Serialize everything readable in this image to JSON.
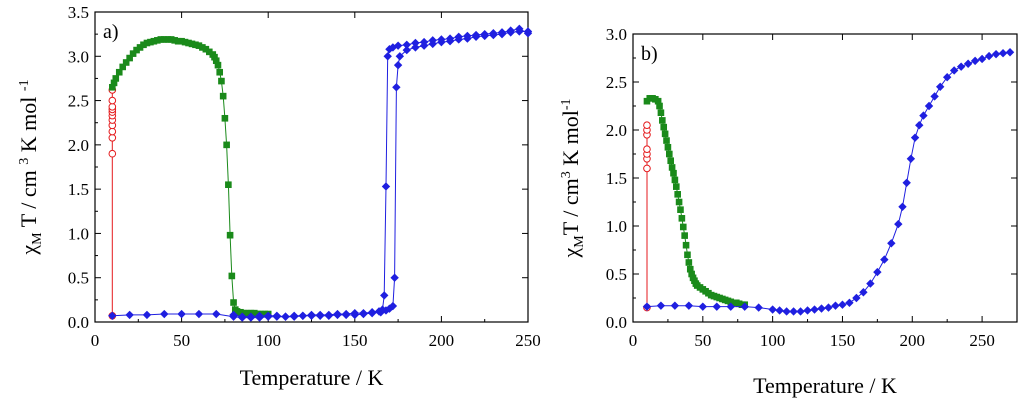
{
  "chart_data": [
    {
      "type": "scatter",
      "panel_label": "a)",
      "xlabel": "Temperature / K",
      "ylabel_parts": [
        "χ",
        "M",
        " T / cm ",
        "3",
        " K mol ",
        "-1"
      ],
      "xlim": [
        0,
        250
      ],
      "ylim": [
        0,
        3.5
      ],
      "xticks": [
        0,
        50,
        100,
        150,
        200,
        250
      ],
      "xtick_labels": [
        "0",
        "50",
        "100",
        "150",
        "200",
        "250"
      ],
      "yticks": [
        0,
        0.5,
        1.0,
        1.5,
        2.0,
        2.5,
        3.0,
        3.5
      ],
      "ytick_labels": [
        "0.0",
        "0.5",
        "1.0",
        "1.5",
        "2.0",
        "2.5",
        "3.0",
        "3.5"
      ],
      "grid": false,
      "series": [
        {
          "name": "red open circles",
          "color": "#e41a1c",
          "marker": "circle-open",
          "points": [
            [
              10,
              0.07
            ],
            [
              10,
              1.9
            ],
            [
              10,
              2.08
            ],
            [
              10,
              2.15
            ],
            [
              10,
              2.22
            ],
            [
              10,
              2.28
            ],
            [
              10,
              2.33
            ],
            [
              10,
              2.37
            ],
            [
              10,
              2.4
            ],
            [
              10,
              2.43
            ],
            [
              10,
              2.5
            ],
            [
              10,
              2.62
            ]
          ]
        },
        {
          "name": "green filled squares",
          "color": "#1a8a1a",
          "marker": "square",
          "points": [
            [
              10,
              2.65
            ],
            [
              11,
              2.7
            ],
            [
              12,
              2.75
            ],
            [
              14,
              2.82
            ],
            [
              16,
              2.88
            ],
            [
              18,
              2.93
            ],
            [
              20,
              2.98
            ],
            [
              22,
              3.03
            ],
            [
              24,
              3.07
            ],
            [
              26,
              3.1
            ],
            [
              28,
              3.13
            ],
            [
              30,
              3.15
            ],
            [
              32,
              3.16
            ],
            [
              34,
              3.17
            ],
            [
              36,
              3.18
            ],
            [
              38,
              3.19
            ],
            [
              40,
              3.19
            ],
            [
              42,
              3.19
            ],
            [
              44,
              3.19
            ],
            [
              46,
              3.18
            ],
            [
              48,
              3.17
            ],
            [
              50,
              3.17
            ],
            [
              52,
              3.16
            ],
            [
              54,
              3.15
            ],
            [
              56,
              3.14
            ],
            [
              58,
              3.13
            ],
            [
              60,
              3.12
            ],
            [
              62,
              3.1
            ],
            [
              64,
              3.08
            ],
            [
              66,
              3.05
            ],
            [
              68,
              3.02
            ],
            [
              69,
              2.99
            ],
            [
              70,
              2.95
            ],
            [
              71,
              2.9
            ],
            [
              72,
              2.82
            ],
            [
              73,
              2.72
            ],
            [
              74,
              2.55
            ],
            [
              75,
              2.3
            ],
            [
              76,
              2.0
            ],
            [
              77,
              1.55
            ],
            [
              78,
              0.98
            ],
            [
              79,
              0.52
            ],
            [
              80,
              0.22
            ],
            [
              81,
              0.14
            ],
            [
              82,
              0.12
            ],
            [
              84,
              0.11
            ],
            [
              86,
              0.1
            ],
            [
              88,
              0.1
            ],
            [
              90,
              0.1
            ],
            [
              92,
              0.1
            ],
            [
              94,
              0.09
            ],
            [
              96,
              0.09
            ],
            [
              98,
              0.09
            ],
            [
              100,
              0.09
            ]
          ]
        },
        {
          "name": "blue diamonds (cooling)",
          "color": "#1f1fe0",
          "marker": "diamond",
          "points": [
            [
              10,
              0.07
            ],
            [
              20,
              0.08
            ],
            [
              30,
              0.08
            ],
            [
              40,
              0.09
            ],
            [
              50,
              0.09
            ],
            [
              60,
              0.09
            ],
            [
              70,
              0.09
            ],
            [
              80,
              0.06
            ],
            [
              85,
              0.05
            ],
            [
              90,
              0.05
            ],
            [
              95,
              0.05
            ],
            [
              100,
              0.06
            ],
            [
              105,
              0.06
            ],
            [
              110,
              0.06
            ],
            [
              115,
              0.06
            ],
            [
              120,
              0.07
            ],
            [
              125,
              0.07
            ],
            [
              130,
              0.07
            ],
            [
              135,
              0.07
            ],
            [
              140,
              0.08
            ],
            [
              145,
              0.08
            ],
            [
              150,
              0.08
            ],
            [
              155,
              0.09
            ],
            [
              160,
              0.1
            ],
            [
              165,
              0.11
            ],
            [
              168,
              0.13
            ],
            [
              170,
              0.15
            ],
            [
              172,
              0.18
            ],
            [
              173,
              0.5
            ],
            [
              174,
              2.65
            ],
            [
              175,
              2.9
            ],
            [
              176,
              3.0
            ],
            [
              180,
              3.07
            ],
            [
              185,
              3.1
            ],
            [
              190,
              3.12
            ],
            [
              195,
              3.14
            ],
            [
              200,
              3.16
            ],
            [
              205,
              3.17
            ],
            [
              210,
              3.19
            ],
            [
              215,
              3.2
            ],
            [
              220,
              3.22
            ],
            [
              225,
              3.23
            ],
            [
              230,
              3.24
            ],
            [
              235,
              3.25
            ],
            [
              240,
              3.27
            ],
            [
              245,
              3.28
            ],
            [
              250,
              3.28
            ]
          ]
        },
        {
          "name": "blue diamonds (warming)",
          "color": "#1f1fe0",
          "marker": "diamond",
          "points": [
            [
              80,
              0.08
            ],
            [
              85,
              0.06
            ],
            [
              90,
              0.06
            ],
            [
              95,
              0.07
            ],
            [
              100,
              0.07
            ],
            [
              105,
              0.07
            ],
            [
              110,
              0.06
            ],
            [
              115,
              0.07
            ],
            [
              120,
              0.07
            ],
            [
              125,
              0.08
            ],
            [
              130,
              0.08
            ],
            [
              135,
              0.08
            ],
            [
              140,
              0.09
            ],
            [
              145,
              0.09
            ],
            [
              150,
              0.1
            ],
            [
              155,
              0.1
            ],
            [
              160,
              0.11
            ],
            [
              164,
              0.12
            ],
            [
              166,
              0.14
            ],
            [
              167,
              0.3
            ],
            [
              168,
              1.53
            ],
            [
              169,
              3.0
            ],
            [
              170,
              3.08
            ],
            [
              172,
              3.1
            ],
            [
              175,
              3.12
            ],
            [
              180,
              3.13
            ],
            [
              185,
              3.15
            ],
            [
              190,
              3.16
            ],
            [
              195,
              3.18
            ],
            [
              200,
              3.19
            ],
            [
              205,
              3.2
            ],
            [
              210,
              3.22
            ],
            [
              215,
              3.23
            ],
            [
              220,
              3.24
            ],
            [
              225,
              3.25
            ],
            [
              230,
              3.26
            ],
            [
              235,
              3.27
            ],
            [
              240,
              3.29
            ],
            [
              245,
              3.31
            ],
            [
              250,
              3.26
            ]
          ]
        }
      ]
    },
    {
      "type": "scatter",
      "panel_label": "b)",
      "xlabel": "Temperature / K",
      "ylabel_parts": [
        "χ",
        "M",
        "T / cm",
        "3",
        " K mol",
        "-1"
      ],
      "xlim": [
        0,
        275
      ],
      "ylim": [
        0,
        3.0
      ],
      "xticks": [
        0,
        50,
        100,
        150,
        200,
        250
      ],
      "xtick_labels": [
        "0",
        "50",
        "100",
        "150",
        "200",
        "250"
      ],
      "yticks": [
        0,
        0.5,
        1.0,
        1.5,
        2.0,
        2.5,
        3.0
      ],
      "ytick_labels": [
        "0.0",
        "0.5",
        "1.0",
        "1.5",
        "2.0",
        "2.5",
        "3.0"
      ],
      "grid": false,
      "series": [
        {
          "name": "red open circles",
          "color": "#e41a1c",
          "marker": "circle-open",
          "points": [
            [
              10,
              0.15
            ],
            [
              10,
              1.6
            ],
            [
              10,
              1.7
            ],
            [
              10,
              1.75
            ],
            [
              10,
              1.8
            ],
            [
              10,
              1.95
            ],
            [
              10,
              2.0
            ],
            [
              10,
              2.05
            ]
          ]
        },
        {
          "name": "green filled squares",
          "color": "#1a8a1a",
          "marker": "square",
          "points": [
            [
              10,
              2.3
            ],
            [
              12,
              2.33
            ],
            [
              14,
              2.33
            ],
            [
              16,
              2.32
            ],
            [
              18,
              2.3
            ],
            [
              19,
              2.25
            ],
            [
              20,
              2.18
            ],
            [
              21,
              2.1
            ],
            [
              22,
              2.03
            ],
            [
              23,
              1.96
            ],
            [
              24,
              1.89
            ],
            [
              25,
              1.82
            ],
            [
              26,
              1.75
            ],
            [
              27,
              1.68
            ],
            [
              28,
              1.61
            ],
            [
              29,
              1.55
            ],
            [
              30,
              1.48
            ],
            [
              31,
              1.41
            ],
            [
              32,
              1.33
            ],
            [
              33,
              1.25
            ],
            [
              34,
              1.17
            ],
            [
              35,
              1.08
            ],
            [
              36,
              0.99
            ],
            [
              37,
              0.9
            ],
            [
              38,
              0.8
            ],
            [
              39,
              0.7
            ],
            [
              40,
              0.62
            ],
            [
              41,
              0.55
            ],
            [
              42,
              0.5
            ],
            [
              43,
              0.46
            ],
            [
              44,
              0.43
            ],
            [
              45,
              0.4
            ],
            [
              46,
              0.38
            ],
            [
              48,
              0.36
            ],
            [
              50,
              0.34
            ],
            [
              52,
              0.32
            ],
            [
              54,
              0.3
            ],
            [
              56,
              0.28
            ],
            [
              58,
              0.27
            ],
            [
              60,
              0.26
            ],
            [
              62,
              0.25
            ],
            [
              64,
              0.24
            ],
            [
              66,
              0.23
            ],
            [
              68,
              0.22
            ],
            [
              70,
              0.21
            ],
            [
              72,
              0.2
            ],
            [
              74,
              0.2
            ],
            [
              76,
              0.19
            ],
            [
              78,
              0.18
            ],
            [
              80,
              0.18
            ]
          ]
        },
        {
          "name": "blue diamonds",
          "color": "#1f1fe0",
          "marker": "diamond",
          "points": [
            [
              10,
              0.16
            ],
            [
              20,
              0.17
            ],
            [
              30,
              0.17
            ],
            [
              40,
              0.17
            ],
            [
              50,
              0.16
            ],
            [
              60,
              0.16
            ],
            [
              70,
              0.16
            ],
            [
              80,
              0.16
            ],
            [
              90,
              0.15
            ],
            [
              100,
              0.13
            ],
            [
              105,
              0.12
            ],
            [
              110,
              0.11
            ],
            [
              115,
              0.11
            ],
            [
              120,
              0.11
            ],
            [
              125,
              0.12
            ],
            [
              130,
              0.13
            ],
            [
              135,
              0.14
            ],
            [
              140,
              0.15
            ],
            [
              145,
              0.17
            ],
            [
              150,
              0.18
            ],
            [
              155,
              0.2
            ],
            [
              160,
              0.25
            ],
            [
              165,
              0.31
            ],
            [
              170,
              0.4
            ],
            [
              175,
              0.52
            ],
            [
              180,
              0.65
            ],
            [
              185,
              0.82
            ],
            [
              190,
              1.02
            ],
            [
              193,
              1.2
            ],
            [
              196,
              1.45
            ],
            [
              199,
              1.7
            ],
            [
              202,
              1.92
            ],
            [
              205,
              2.05
            ],
            [
              208,
              2.15
            ],
            [
              212,
              2.25
            ],
            [
              216,
              2.35
            ],
            [
              220,
              2.45
            ],
            [
              225,
              2.55
            ],
            [
              230,
              2.62
            ],
            [
              235,
              2.66
            ],
            [
              240,
              2.69
            ],
            [
              245,
              2.72
            ],
            [
              250,
              2.74
            ],
            [
              255,
              2.77
            ],
            [
              260,
              2.79
            ],
            [
              265,
              2.8
            ],
            [
              270,
              2.81
            ]
          ]
        }
      ]
    }
  ]
}
